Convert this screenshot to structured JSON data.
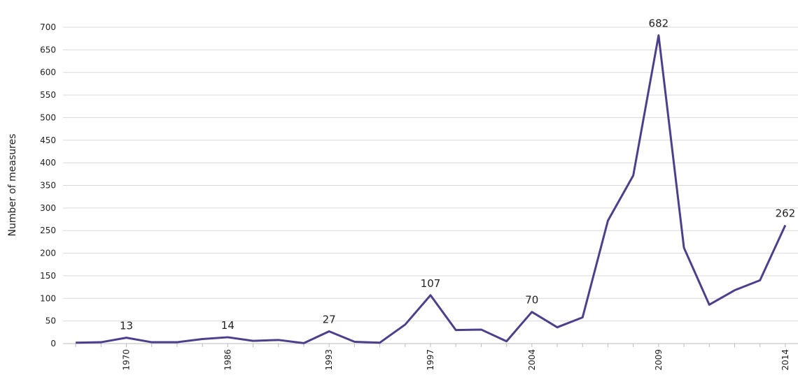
{
  "chart_data": {
    "type": "line",
    "y_label": "Number of measures",
    "categories": [
      null,
      null,
      "1970",
      null,
      null,
      null,
      "1986",
      null,
      null,
      null,
      "1993",
      null,
      null,
      null,
      "1997",
      null,
      null,
      null,
      "2004",
      null,
      null,
      null,
      null,
      "2009",
      null,
      null,
      null,
      null,
      "2014"
    ],
    "values": [
      2,
      3,
      13,
      3,
      3,
      10,
      14,
      6,
      8,
      1,
      27,
      4,
      2,
      42,
      107,
      30,
      31,
      5,
      70,
      36,
      58,
      272,
      372,
      682,
      212,
      86,
      118,
      140,
      262
    ],
    "color": "#4e3f8c",
    "ylim": [
      0,
      700
    ],
    "yticks": [
      0,
      50,
      100,
      150,
      200,
      250,
      300,
      350,
      400,
      450,
      500,
      550,
      600,
      650,
      700
    ],
    "grid": true
  }
}
